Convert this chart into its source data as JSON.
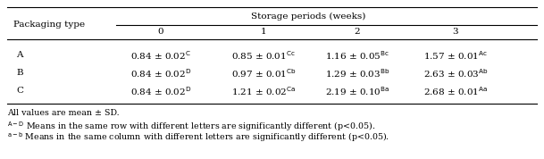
{
  "title_row": "Storage periods (weeks)",
  "col_header": "Packaging type",
  "sub_cols": [
    "0",
    "1",
    "2",
    "3"
  ],
  "rows": [
    {
      "label": "A",
      "values": [
        "0.84 ± 0.02$^{\\mathrm{C}}$",
        "0.85 ± 0.01$^{\\mathrm{Cc}}$",
        "1.16 ± 0.05$^{\\mathrm{Bc}}$",
        "1.57 ± 0.01$^{\\mathrm{Ac}}$"
      ]
    },
    {
      "label": "B",
      "values": [
        "0.84 ± 0.02$^{\\mathrm{D}}$",
        "0.97 ± 0.01$^{\\mathrm{Cb}}$",
        "1.29 ± 0.03$^{\\mathrm{Bb}}$",
        "2.63 ± 0.03$^{\\mathrm{Ab}}$"
      ]
    },
    {
      "label": "C",
      "values": [
        "0.84 ± 0.02$^{\\mathrm{D}}$",
        "1.21 ± 0.02$^{\\mathrm{Ca}}$",
        "2.19 ± 0.10$^{\\mathrm{Ba}}$",
        "2.68 ± 0.01$^{\\mathrm{Aa}}$"
      ]
    }
  ],
  "footnotes": [
    "All values are mean ± SD.",
    "$^{\\mathrm{A-D}}$ Means in the same row with different letters are significantly different (p<0.05).",
    "$^{\\mathrm{a-b}}$ Means in the same column with different letters are significantly different (p<0.05)."
  ],
  "font_size": 7.5,
  "footnote_font_size": 6.8
}
